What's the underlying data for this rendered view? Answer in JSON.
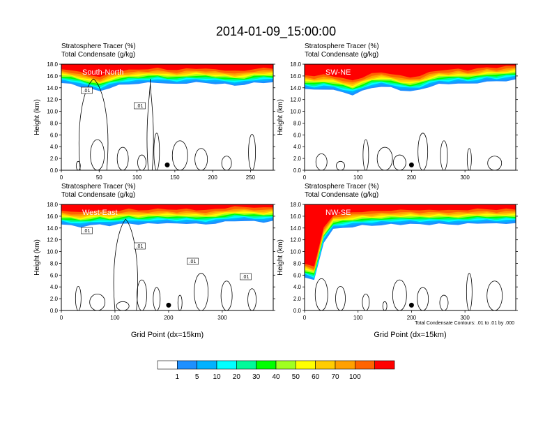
{
  "title": "2014-01-09_15:00:00",
  "colorbar": {
    "labels": [
      "1",
      "5",
      "10",
      "20",
      "30",
      "40",
      "50",
      "60",
      "70",
      "100"
    ],
    "colors": [
      "#ffffff",
      "#1e90ff",
      "#00b2ff",
      "#00ffff",
      "#00fa9a",
      "#00ff00",
      "#a0ff20",
      "#ffff00",
      "#ffcc00",
      "#ffa000",
      "#ff6400",
      "#ff0000"
    ]
  },
  "chart_data": [
    {
      "type": "heatmap",
      "subtitle1": "Stratosphere Tracer   (%)",
      "subtitle2": "Total Condensate   (g/kg)",
      "label": "South-North",
      "ylabel": "Height (km)",
      "xlabel": "",
      "xlim": [
        0,
        280
      ],
      "xticks": [
        "0",
        "50",
        "100",
        "150",
        "200",
        "250"
      ],
      "xtick_values": [
        0,
        50,
        100,
        150,
        200,
        250
      ],
      "ylim": [
        0,
        18
      ],
      "yticks": [
        "0.0",
        "2.0",
        "4.0",
        "6.0",
        "8.0",
        "10.0",
        "12.0",
        "14.0",
        "16.0",
        "18.0"
      ],
      "tropopause_km": [
        15.2,
        15.0,
        14.6,
        14.2,
        13.8,
        14.4,
        14.8,
        15.0,
        15.1,
        15.2,
        15.3,
        15.1,
        15.0,
        15.2,
        15.3,
        15.2,
        15.1,
        15.0,
        14.8,
        14.9,
        15.2,
        15.3,
        15.3
      ],
      "marker_x": 140,
      "contour_labels": [
        ".01",
        ".01"
      ]
    },
    {
      "type": "heatmap",
      "subtitle1": "Stratosphere Tracer   (%)",
      "subtitle2": "Total Condensate   (g/kg)",
      "label": "SW-NE",
      "ylabel": "Height (km)",
      "xlabel": "",
      "xlim": [
        0,
        395
      ],
      "xticks": [
        "0",
        "100",
        "200",
        "300"
      ],
      "xtick_values": [
        0,
        100,
        200,
        300
      ],
      "ylim": [
        0,
        18
      ],
      "yticks": [
        "0.0",
        "2.0",
        "4.0",
        "6.0",
        "8.0",
        "10.0",
        "12.0",
        "14.0",
        "16.0",
        "18.0"
      ],
      "tropopause_km": [
        14.2,
        14.0,
        14.2,
        14.0,
        13.6,
        13.2,
        13.8,
        14.4,
        14.6,
        14.4,
        14.0,
        13.8,
        14.0,
        14.6,
        15.0,
        15.0,
        15.2,
        15.0,
        15.2,
        15.5,
        15.4,
        15.6,
        15.8
      ],
      "marker_x": 200,
      "contour_labels": []
    },
    {
      "type": "heatmap",
      "subtitle1": "Stratosphere Tracer   (%)",
      "subtitle2": "Total Condensate   (g/kg)",
      "label": "West-East",
      "ylabel": "Height (km)",
      "xlabel": "Grid Point (dx=15km)",
      "xlim": [
        0,
        395
      ],
      "xticks": [
        "0",
        "100",
        "200",
        "300"
      ],
      "xtick_values": [
        0,
        100,
        200,
        300
      ],
      "ylim": [
        0,
        18
      ],
      "yticks": [
        "0.0",
        "2.0",
        "4.0",
        "6.0",
        "8.0",
        "10.0",
        "12.0",
        "14.0",
        "16.0",
        "18.0"
      ],
      "tropopause_km": [
        15.0,
        14.8,
        14.6,
        14.8,
        15.0,
        14.8,
        15.0,
        15.2,
        15.0,
        15.1,
        15.2,
        15.2,
        15.1,
        15.2,
        15.1,
        15.0,
        15.2,
        15.4,
        15.6,
        15.6,
        15.5,
        15.4,
        15.6
      ],
      "marker_x": 200,
      "contour_labels": [
        ".01",
        ".01",
        ".01",
        ".01"
      ]
    },
    {
      "type": "heatmap",
      "subtitle1": "Stratosphere Tracer   (%)",
      "subtitle2": "Total Condensate   (g/kg)",
      "label": "NW-SE",
      "ylabel": "Height (km)",
      "xlabel": "Grid Point (dx=15km)",
      "xlim": [
        0,
        395
      ],
      "xticks": [
        "0",
        "100",
        "200",
        "300"
      ],
      "xtick_values": [
        0,
        100,
        200,
        300
      ],
      "ylim": [
        0,
        18
      ],
      "yticks": [
        "0.0",
        "2.0",
        "4.0",
        "6.0",
        "8.0",
        "10.0",
        "12.0",
        "14.0",
        "16.0",
        "18.0"
      ],
      "tropopause_km": [
        6.0,
        5.5,
        12.0,
        14.2,
        14.4,
        14.6,
        14.8,
        14.8,
        14.9,
        15.0,
        15.0,
        15.1,
        15.0,
        15.0,
        15.1,
        15.0,
        15.0,
        15.1,
        15.2,
        15.2,
        15.1,
        15.2,
        15.2
      ],
      "marker_x": 200,
      "contour_labels": [],
      "footnote": "Total Condensate Contours: .01 to .01 by .000"
    }
  ]
}
